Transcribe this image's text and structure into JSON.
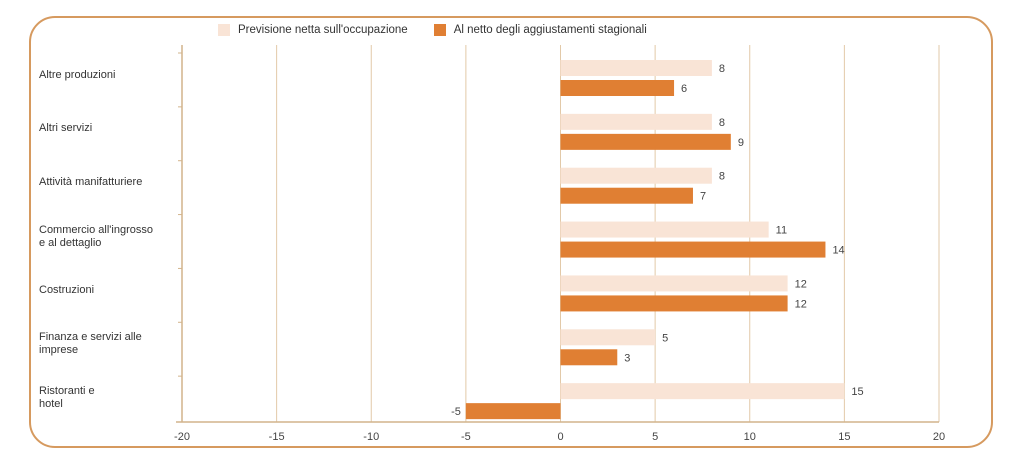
{
  "chart_data": {
    "type": "bar",
    "orientation": "horizontal",
    "title": "",
    "xlabel": "",
    "ylabel": "",
    "xlim": [
      -20,
      20
    ],
    "xticks": [
      -20,
      -15,
      -10,
      -5,
      0,
      5,
      10,
      15,
      20
    ],
    "grid": true,
    "legend_position": "top",
    "categories": [
      "Altre produzioni",
      "Altri servizi",
      "Attività manifatturiere",
      "Commercio all'ingrosso e al dettaglio",
      "Costruzioni",
      "Finanza e servizi alle imprese",
      "Ristoranti e hotel"
    ],
    "category_lines": [
      [
        "Altre produzioni"
      ],
      [
        "Altri servizi"
      ],
      [
        "Attività manifatturiere"
      ],
      [
        "Commercio all'ingrosso",
        "e al dettaglio"
      ],
      [
        "Costruzioni"
      ],
      [
        "Finanza e servizi alle",
        "imprese"
      ],
      [
        "Ristoranti e",
        "hotel"
      ]
    ],
    "series": [
      {
        "name": "Previsione netta sull'occupazione",
        "color": "#f9e4d6",
        "values": [
          8,
          8,
          8,
          11,
          12,
          5,
          15
        ]
      },
      {
        "name": "Al netto degli aggiustamenti stagionali",
        "color": "#e07f33",
        "values": [
          6,
          9,
          7,
          14,
          12,
          3,
          -5
        ]
      }
    ]
  },
  "colors": {
    "frame": "#d69a5f",
    "grid": "#e2c9a8",
    "axis": "#d2b48c"
  }
}
